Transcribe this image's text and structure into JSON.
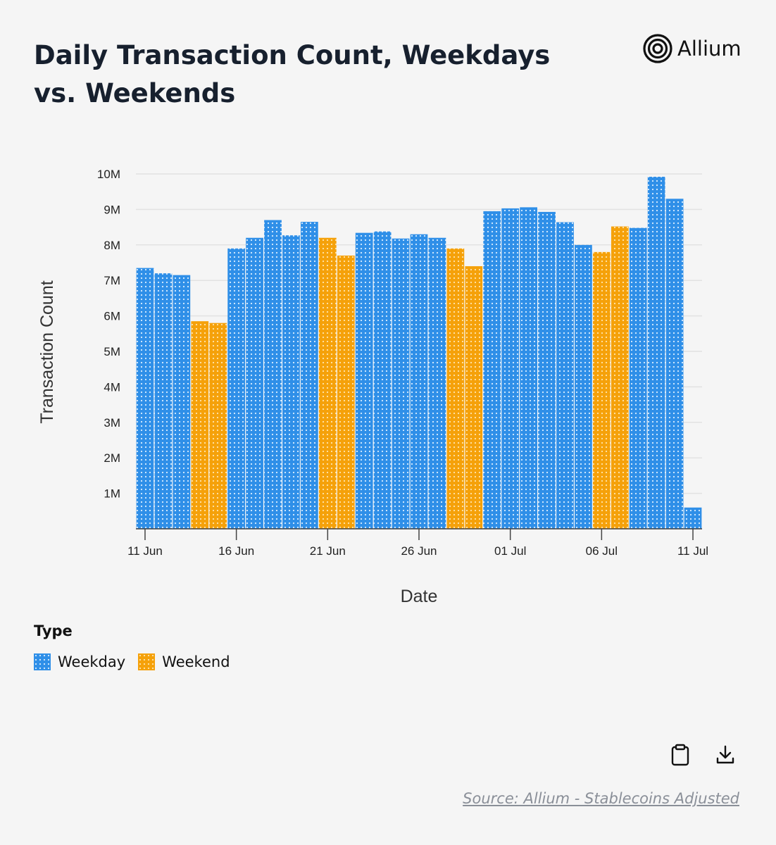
{
  "header": {
    "title": "Daily Transaction Count, Weekdays vs. Weekends",
    "brand": "Allium"
  },
  "legend": {
    "title": "Type",
    "items": [
      {
        "label": "Weekday",
        "color": "#2f8fe8"
      },
      {
        "label": "Weekend",
        "color": "#f5a10a"
      }
    ]
  },
  "actions": {
    "copy_icon": "clipboard-icon",
    "download_icon": "download-icon"
  },
  "footer": {
    "source": "Source: Allium - Stablecoins Adjusted"
  },
  "chart_data": {
    "type": "bar",
    "xlabel": "Date",
    "ylabel": "Transaction Count",
    "ylim": [
      0,
      10000000
    ],
    "yticks": [
      "1M",
      "2M",
      "3M",
      "4M",
      "5M",
      "6M",
      "7M",
      "8M",
      "9M",
      "10M"
    ],
    "xticks": [
      "11 Jun",
      "16 Jun",
      "21 Jun",
      "26 Jun",
      "01 Jul",
      "06 Jul",
      "11 Jul"
    ],
    "grid": true,
    "legend_position": "bottom-left",
    "colors": {
      "Weekday": "#2f8fe8",
      "Weekend": "#f5a10a"
    },
    "categories": [
      "2024-06-11",
      "2024-06-12",
      "2024-06-13",
      "2024-06-14",
      "2024-06-15",
      "2024-06-16",
      "2024-06-17",
      "2024-06-18",
      "2024-06-19",
      "2024-06-20",
      "2024-06-21",
      "2024-06-22",
      "2024-06-23",
      "2024-06-24",
      "2024-06-25",
      "2024-06-26",
      "2024-06-27",
      "2024-06-28",
      "2024-06-29",
      "2024-06-30",
      "2024-07-01",
      "2024-07-02",
      "2024-07-03",
      "2024-07-04",
      "2024-07-05",
      "2024-07-06",
      "2024-07-07",
      "2024-07-08",
      "2024-07-09",
      "2024-07-10",
      "2024-07-11"
    ],
    "types": [
      "Weekday",
      "Weekday",
      "Weekday",
      "Weekend",
      "Weekend",
      "Weekday",
      "Weekday",
      "Weekday",
      "Weekday",
      "Weekday",
      "Weekend",
      "Weekend",
      "Weekday",
      "Weekday",
      "Weekday",
      "Weekday",
      "Weekday",
      "Weekend",
      "Weekend",
      "Weekday",
      "Weekday",
      "Weekday",
      "Weekday",
      "Weekday",
      "Weekday",
      "Weekend",
      "Weekend",
      "Weekday",
      "Weekday",
      "Weekday",
      "Weekday"
    ],
    "values": [
      7350000,
      7200000,
      7150000,
      5850000,
      5800000,
      7900000,
      8200000,
      8700000,
      8270000,
      8650000,
      8200000,
      7700000,
      8340000,
      8380000,
      8180000,
      8300000,
      8200000,
      7900000,
      7400000,
      8950000,
      9030000,
      9060000,
      8930000,
      8640000,
      8000000,
      7800000,
      8520000,
      8480000,
      9920000,
      9300000,
      600000
    ]
  }
}
